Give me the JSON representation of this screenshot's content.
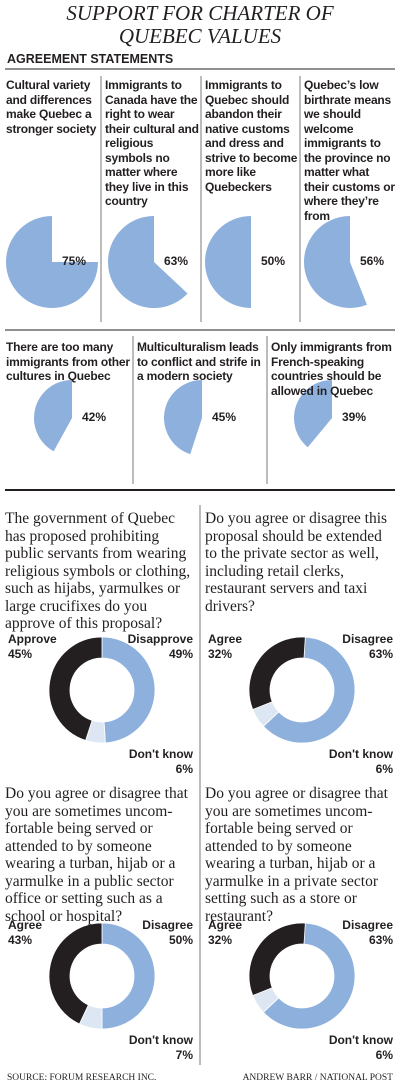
{
  "title": "SUPPORT FOR CHARTER OF QUEBEC VALUES",
  "section_title": "AGREEMENT STATEMENTS",
  "source": "SOURCE: FORUM RESEARCH INC.",
  "credit": "ANDREW BARR / NATIONAL POST",
  "chart_data": [
    {
      "type": "pie",
      "title": "Cultural variety and differences make Quebec a stronger society",
      "values": [
        75
      ],
      "value_labels": [
        "75%"
      ],
      "color": "#8eb0dd"
    },
    {
      "type": "pie",
      "title": "Immigrants to Canada have the right to wear their cultural and religious symbols no matter where they live in this country",
      "values": [
        63
      ],
      "value_labels": [
        "63%"
      ],
      "color": "#8eb0dd"
    },
    {
      "type": "pie",
      "title": "Immigrants to Quebec should abandon their native customs and dress and strive to become more like Quebeckers",
      "values": [
        50
      ],
      "value_labels": [
        "50%"
      ],
      "color": "#8eb0dd"
    },
    {
      "type": "pie",
      "title": "Quebec’s low birthrate means we should welcome immigrants to the province no matter what their customs or where they’re from",
      "values": [
        56
      ],
      "value_labels": [
        "56%"
      ],
      "color": "#8eb0dd"
    },
    {
      "type": "pie",
      "title": "There are too many immigrants from other cultures in Quebec",
      "values": [
        42
      ],
      "value_labels": [
        "42%"
      ],
      "color": "#8eb0dd"
    },
    {
      "type": "pie",
      "title": "Multiculturalism leads to conflict and strife in a modern society",
      "values": [
        45
      ],
      "value_labels": [
        "45%"
      ],
      "color": "#8eb0dd"
    },
    {
      "type": "pie",
      "title": "Only immigrants from French-speaking countries should be allowed in Quebec",
      "values": [
        39
      ],
      "value_labels": [
        "39%"
      ],
      "color": "#8eb0dd"
    },
    {
      "type": "donut",
      "title": "The government of Quebec has proposed prohibiting public servants from wearing religious symbols or clothing, such as hijabs, yarmulkes or large crucifixes do you approve of this proposal?",
      "categories": [
        "Approve",
        "Disapprove",
        "Don't know"
      ],
      "values": [
        45,
        49,
        6
      ],
      "value_labels": [
        "45%",
        "49%",
        "6%"
      ],
      "colors": [
        "#231f20",
        "#8eb0dd",
        "#dde7f4"
      ]
    },
    {
      "type": "donut",
      "title": "Do you agree or disagree this proposal should be extended to the private sector as well, including retail clerks, restaurant servers and taxi drivers?",
      "categories": [
        "Agree",
        "Disagree",
        "Don't know"
      ],
      "values": [
        32,
        63,
        6
      ],
      "value_labels": [
        "32%",
        "63%",
        "6%"
      ],
      "colors": [
        "#231f20",
        "#8eb0dd",
        "#dde7f4"
      ]
    },
    {
      "type": "donut",
      "title": "Do you agree or disagree that you are sometimes uncom-fortable being served or attended to by someone wearing a turban, hijab or a yarmulke in a public sector office or setting such as a school or hospital?",
      "categories": [
        "Agree",
        "Disagree",
        "Don't know"
      ],
      "values": [
        43,
        50,
        7
      ],
      "value_labels": [
        "43%",
        "50%",
        "7%"
      ],
      "colors": [
        "#231f20",
        "#8eb0dd",
        "#dde7f4"
      ]
    },
    {
      "type": "donut",
      "title": "Do you agree or disagree that you are sometimes uncom-fortable being served or attended to by someone wearing a turban, hijab or a yarmulke in a private sector setting such as a store or restaurant?",
      "categories": [
        "Agree",
        "Disagree",
        "Don't know"
      ],
      "values": [
        32,
        63,
        6
      ],
      "value_labels": [
        "32%",
        "63%",
        "6%"
      ],
      "colors": [
        "#231f20",
        "#8eb0dd",
        "#dde7f4"
      ]
    }
  ]
}
